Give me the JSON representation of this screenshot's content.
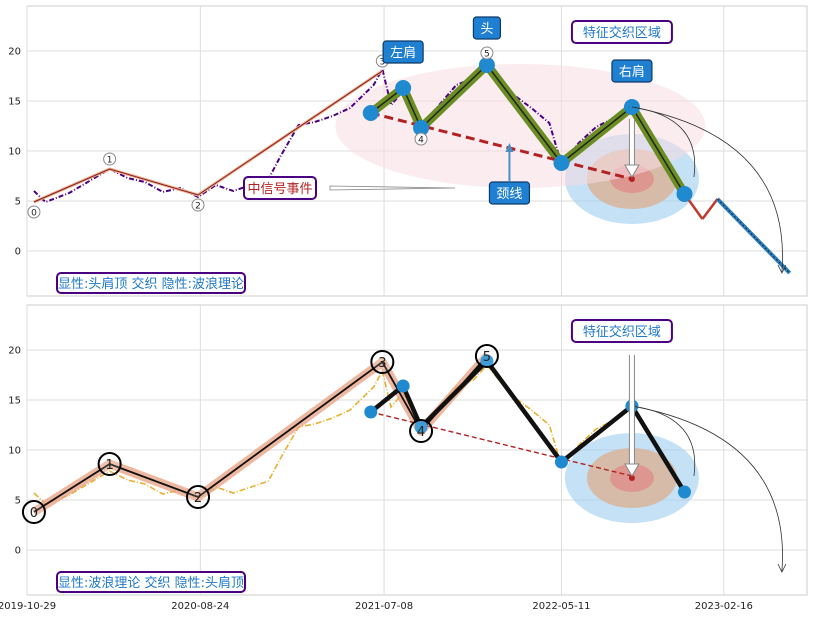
{
  "chart_data": [
    {
      "type": "line",
      "panel": "top",
      "title_box": "显性:头肩顶 交织 隐性:波浪理论",
      "xlim": [
        "2019-10-29",
        "2023-07-10"
      ],
      "ylim": [
        -4.5,
        24.5
      ],
      "yticks": [
        0,
        5,
        10,
        15,
        20
      ],
      "grid": true,
      "price_color": "#4b0082",
      "price_series": [
        [
          "2019-11-10",
          6.0
        ],
        [
          "2019-11-30",
          4.9
        ],
        [
          "2020-01-10",
          5.8
        ],
        [
          "2020-02-20",
          7.2
        ],
        [
          "2020-03-20",
          8.2
        ],
        [
          "2020-04-20",
          7.3
        ],
        [
          "2020-05-20",
          6.9
        ],
        [
          "2020-06-20",
          5.9
        ],
        [
          "2020-07-20",
          6.3
        ],
        [
          "2020-08-20",
          5.4
        ],
        [
          "2020-09-20",
          6.6
        ],
        [
          "2020-10-20",
          6.0
        ],
        [
          "2020-11-20",
          6.6
        ],
        [
          "2020-12-20",
          7.2
        ],
        [
          "2021-01-10",
          9.5
        ],
        [
          "2021-02-10",
          12.6
        ],
        [
          "2021-03-10",
          12.9
        ],
        [
          "2021-04-10",
          13.5
        ],
        [
          "2021-05-10",
          14.3
        ],
        [
          "2021-06-20",
          16.6
        ],
        [
          "2021-07-05",
          18.2
        ],
        [
          "2021-07-20",
          14.6
        ],
        [
          "2021-08-10",
          16.0
        ],
        [
          "2021-09-10",
          12.6
        ],
        [
          "2021-10-10",
          14.5
        ],
        [
          "2021-11-10",
          16.6
        ],
        [
          "2021-12-10",
          17.3
        ],
        [
          "2022-01-02",
          18.8
        ],
        [
          "2022-01-20",
          17.5
        ],
        [
          "2022-02-20",
          15.5
        ],
        [
          "2022-03-20",
          14.3
        ],
        [
          "2022-04-20",
          12.8
        ],
        [
          "2022-05-11",
          8.7
        ],
        [
          "2022-06-10",
          10.8
        ],
        [
          "2022-07-10",
          12.4
        ],
        [
          "2022-08-10",
          13.3
        ],
        [
          "2022-09-10",
          14.5
        ]
      ],
      "wave_points": [
        {
          "label": "0",
          "x": "2019-11-10",
          "y": 4.9
        },
        {
          "label": "1",
          "x": "2020-03-20",
          "y": 8.2
        },
        {
          "label": "2",
          "x": "2020-08-20",
          "y": 5.6
        },
        {
          "label": "3",
          "x": "2021-07-05",
          "y": 18.0
        },
        {
          "label": "4",
          "x": "2021-09-10",
          "y": 12.2
        },
        {
          "label": "5",
          "x": "2022-01-02",
          "y": 18.8
        }
      ],
      "hs_points": [
        {
          "x": "2021-06-15",
          "y": 13.8
        },
        {
          "x": "2021-08-10",
          "y": 16.3
        },
        {
          "x": "2021-09-10",
          "y": 12.3
        },
        {
          "x": "2022-01-02",
          "y": 18.6
        },
        {
          "x": "2022-05-11",
          "y": 8.8
        },
        {
          "x": "2022-09-10",
          "y": 14.4
        },
        {
          "x": "2022-12-10",
          "y": 5.7
        }
      ],
      "neckline": [
        {
          "x": "2021-06-15",
          "y": 13.8
        },
        {
          "x": "2022-09-10",
          "y": 7.2
        }
      ],
      "projection": [
        {
          "x": "2022-12-10",
          "y": 5.7
        },
        {
          "x": "2023-01-10",
          "y": 3.2
        },
        {
          "x": "2023-02-05",
          "y": 5.2
        },
        {
          "x": "2023-06-10",
          "y": -2.2
        }
      ],
      "annotations": {
        "left_shoulder": "左肩",
        "head": "头",
        "right_shoulder": "右肩",
        "neckline": "颈线",
        "feature_zone": "特征交织区域",
        "event": "中信号事件"
      }
    },
    {
      "type": "line",
      "panel": "bottom",
      "title_box": "显性:波浪理论 交织 隐性:头肩顶",
      "xlim": [
        "2019-10-29",
        "2023-07-10"
      ],
      "ylim": [
        -4.5,
        24.5
      ],
      "yticks": [
        0,
        5,
        10,
        15,
        20
      ],
      "xticks": [
        "2019-10-29",
        "2020-08-24",
        "2021-07-08",
        "2022-05-11",
        "2023-02-16"
      ],
      "grid": true,
      "price_color": "#e8b030",
      "wave_points": [
        {
          "label": "0",
          "x": "2019-11-10",
          "y": 3.8
        },
        {
          "label": "1",
          "x": "2020-03-20",
          "y": 8.6
        },
        {
          "label": "2",
          "x": "2020-08-20",
          "y": 5.3
        },
        {
          "label": "3",
          "x": "2021-07-05",
          "y": 18.8
        },
        {
          "label": "4",
          "x": "2021-09-10",
          "y": 11.9
        },
        {
          "label": "5",
          "x": "2022-01-02",
          "y": 19.4
        }
      ],
      "hs_points": [
        {
          "x": "2021-06-15",
          "y": 13.8
        },
        {
          "x": "2021-08-10",
          "y": 16.4
        },
        {
          "x": "2021-09-10",
          "y": 12.3
        },
        {
          "x": "2022-01-02",
          "y": 18.9
        },
        {
          "x": "2022-05-11",
          "y": 8.8
        },
        {
          "x": "2022-09-10",
          "y": 14.4
        },
        {
          "x": "2022-12-10",
          "y": 5.8
        }
      ],
      "neckline": [
        {
          "x": "2021-06-15",
          "y": 13.8
        },
        {
          "x": "2022-09-10",
          "y": 7.4
        }
      ],
      "annotations": {
        "feature_zone": "特征交织区域"
      }
    }
  ],
  "colors": {
    "box_border": "#4b0082",
    "box_text": "#1f78c8",
    "label_fill": "#1f7fd0",
    "neckline": "#b22222",
    "head_shoulder_line": "#6b8e23",
    "dot": "#1f8ad0",
    "wave_band": "#e8a080",
    "event_text": "#b22222"
  }
}
